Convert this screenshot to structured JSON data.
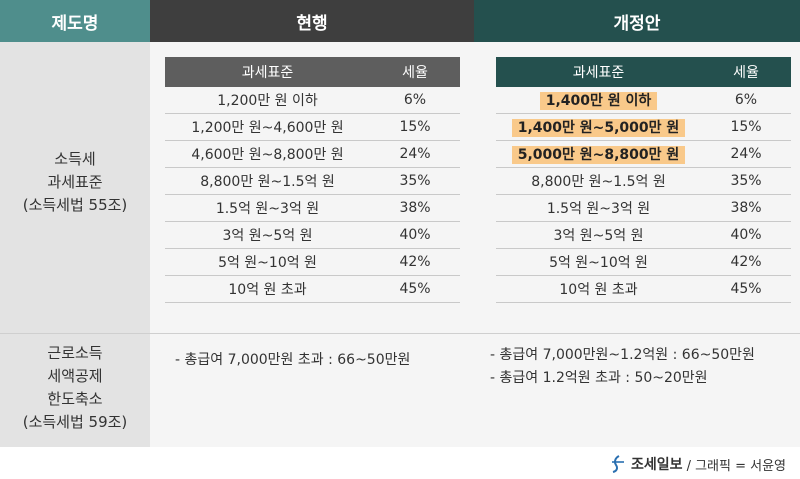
{
  "header": {
    "col1": "제도명",
    "col2": "현행",
    "col3": "개정안"
  },
  "rows": {
    "income_tax": {
      "label_lines": [
        "소득세",
        "과세표준",
        "(소득세법 55조)"
      ]
    },
    "wage_credit": {
      "label_lines": [
        "근로소득",
        "세액공제",
        "한도축소",
        "(소득세법 59조)"
      ]
    }
  },
  "current_table": {
    "head": [
      "과세표준",
      "세율"
    ],
    "rows": [
      {
        "bracket": "1,200만 원 이하",
        "rate": "6%"
      },
      {
        "bracket": "1,200만 원~4,600만 원",
        "rate": "15%"
      },
      {
        "bracket": "4,600만 원~8,800만 원",
        "rate": "24%"
      },
      {
        "bracket": "8,800만 원~1.5억 원",
        "rate": "35%"
      },
      {
        "bracket": "1.5억 원~3억 원",
        "rate": "38%"
      },
      {
        "bracket": "3억 원~5억 원",
        "rate": "40%"
      },
      {
        "bracket": "5억 원~10억 원",
        "rate": "42%"
      },
      {
        "bracket": "10억 원 초과",
        "rate": "45%"
      }
    ]
  },
  "proposed_table": {
    "head": [
      "과세표준",
      "세율"
    ],
    "rows": [
      {
        "bracket": "1,400만 원 이하",
        "rate": "6%",
        "highlight": true
      },
      {
        "bracket": "1,400만 원~5,000만 원",
        "rate": "15%",
        "highlight": true
      },
      {
        "bracket": "5,000만 원~8,800만 원",
        "rate": "24%",
        "highlight": true
      },
      {
        "bracket": "8,800만 원~1.5억 원",
        "rate": "35%",
        "highlight": false
      },
      {
        "bracket": "1.5억 원~3억 원",
        "rate": "38%",
        "highlight": false
      },
      {
        "bracket": "3억 원~5억 원",
        "rate": "40%",
        "highlight": false
      },
      {
        "bracket": "5억 원~10억 원",
        "rate": "42%",
        "highlight": false
      },
      {
        "bracket": "10억 원 초과",
        "rate": "45%",
        "highlight": false
      }
    ]
  },
  "current_notes": [
    "- 총급여 7,000만원 초과 : 66~50만원"
  ],
  "proposed_notes": [
    "- 총급여 7,000만원~1.2억원 : 66~50만원",
    "- 총급여 1.2억원 초과 : 50~20만원"
  ],
  "footer": {
    "brand": "조세일보",
    "credit": "/ 그래픽 = 서윤영",
    "logo_icon": "joseilbo-logo-icon"
  },
  "colors": {
    "header_left": "#4f8e8c",
    "header_mid": "#3e3e3e",
    "header_right": "#24504e",
    "highlight": "#f9c98a"
  }
}
